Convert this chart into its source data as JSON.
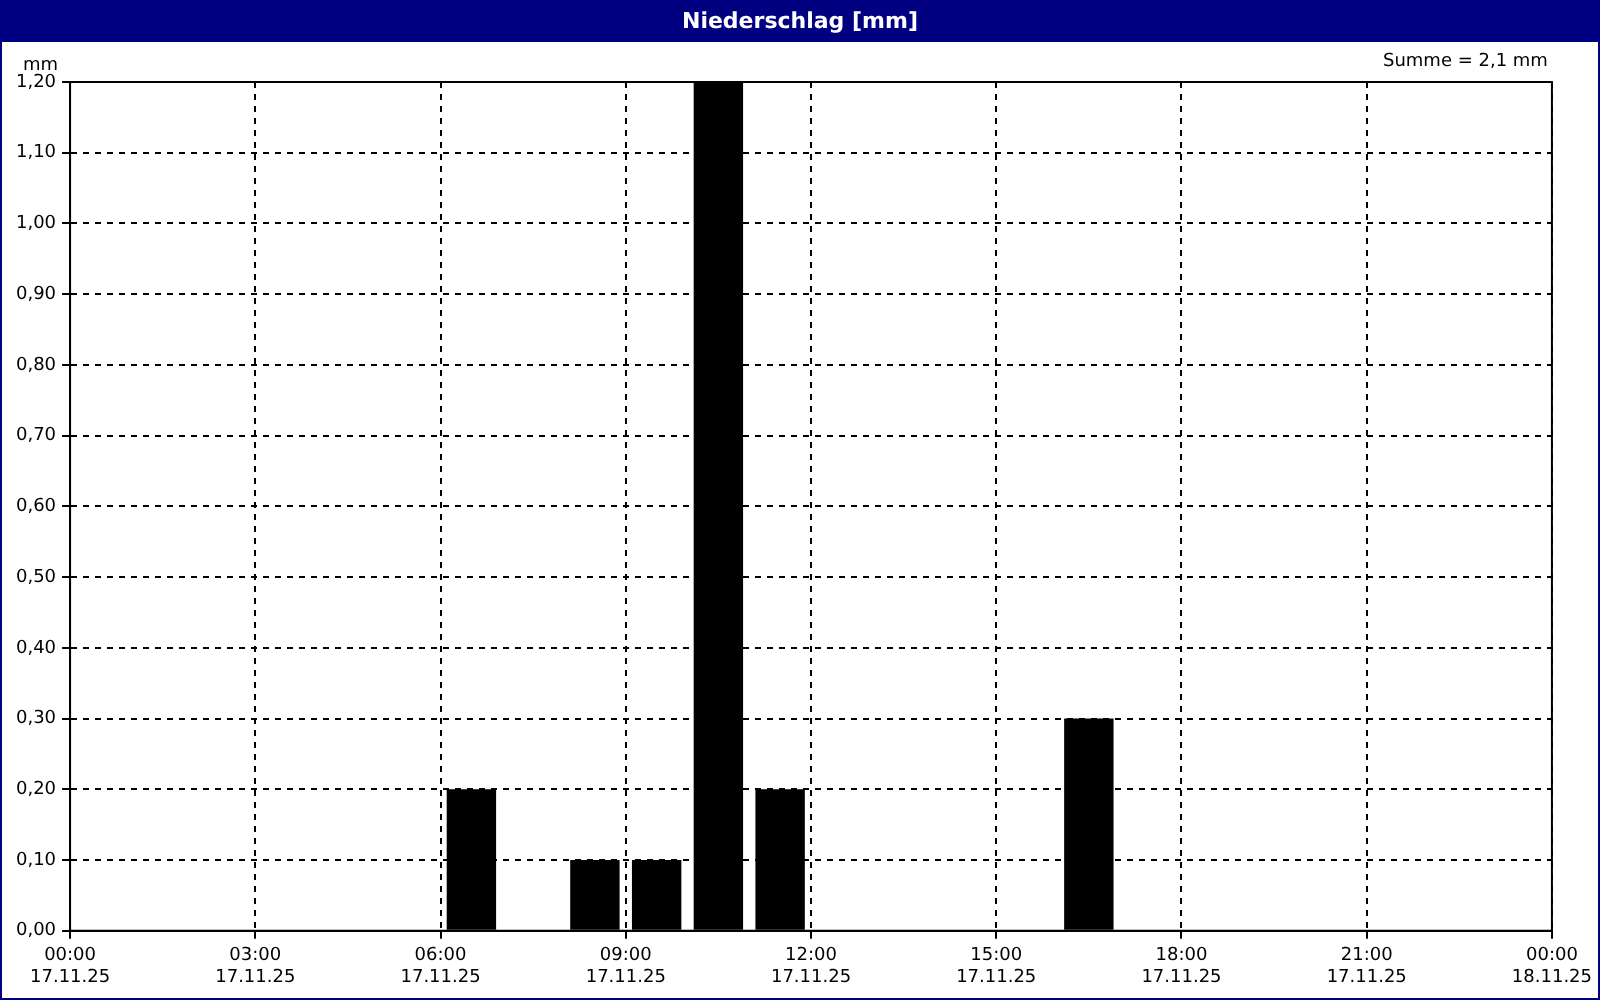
{
  "chart_data": {
    "type": "bar",
    "title": "Niederschlag [mm]",
    "ylabel": "mm",
    "annotations": [
      "Summe = 2,1 mm"
    ],
    "x": [
      "--11-17T06:30",
      "--11-17T08:30",
      "--11-17T09:30",
      "--11-17T10:30",
      "--11-17T11:30",
      "--11-17T16:30"
    ],
    "series": [
      {
        "color": "#000000",
        "values": [
          0.2,
          0.1,
          0.1,
          1.2,
          0.2,
          0.3
        ]
      }
    ],
    "xlim": [
      "--11-17T00:00",
      "--11-18T00:00"
    ],
    "xticks": [
      {
        "value": "--11-17T00:00",
        "label": "00:00\n17.11.25"
      },
      {
        "value": "--11-17T03:00",
        "label": "03:00\n17.11.25"
      },
      {
        "value": "--11-17T06:00",
        "label": "06:00\n17.11.25"
      },
      {
        "value": "--11-17T09:00",
        "label": "09:00\n17.11.25"
      },
      {
        "value": "--11-17T12:00",
        "label": "12:00\n17.11.25"
      },
      {
        "value": "--11-17T15:00",
        "label": "15:00\n17.11.25"
      },
      {
        "value": "--11-17T18:00",
        "label": "18:00\n17.11.25"
      },
      {
        "value": "--11-17T21:00",
        "label": "21:00\n17.11.25"
      },
      {
        "value": "--11-18T00:00",
        "label": "00:00\n18.11.25"
      }
    ],
    "ylim": [
      0,
      1.2
    ],
    "yticks": [
      {
        "value": 0,
        "label": "0,00"
      },
      {
        "value": 0.1,
        "label": "0,10"
      },
      {
        "value": 0.2,
        "label": "0,20"
      },
      {
        "value": 0.3,
        "label": "0,30"
      },
      {
        "value": 0.4,
        "label": "0,40"
      },
      {
        "value": 0.5,
        "label": "0,50"
      },
      {
        "value": 0.6,
        "label": "0,60"
      },
      {
        "value": 0.7,
        "label": "0,70"
      },
      {
        "value": 0.8,
        "label": "0,80"
      },
      {
        "value": 0.9,
        "label": "0,90"
      },
      {
        "value": 1.0,
        "label": "1,00"
      },
      {
        "value": 1.1,
        "label": "1,10"
      },
      {
        "value": 1.2,
        "label": "1,20"
      }
    ],
    "grid": true,
    "legend": false
  }
}
